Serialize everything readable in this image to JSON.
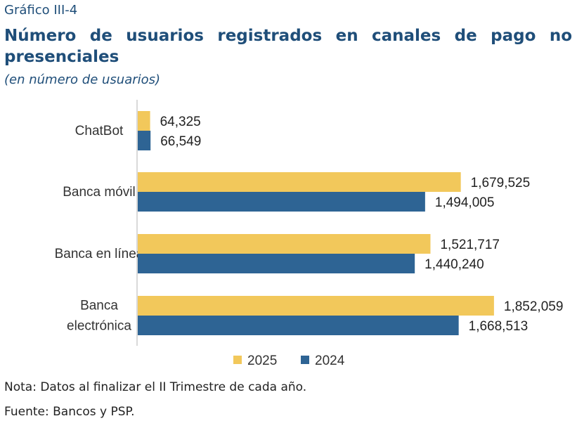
{
  "header": {
    "kicker": "Gráfico III-4",
    "title": "Número de usuarios registrados en canales de pago no presenciales",
    "subtitle": "(en número de usuarios)"
  },
  "footer": {
    "note": "Nota: Datos al finalizar el II Trimestre de cada año.",
    "source": "Fuente: Bancos y PSP."
  },
  "colors": {
    "series_2025": "#f2c85b",
    "series_2024": "#2e6494",
    "axis": "#d9d9d9"
  },
  "chart_data": {
    "type": "bar",
    "orientation": "horizontal",
    "categories": [
      [
        "ChatBot"
      ],
      [
        "Banca móvil"
      ],
      [
        "Banca en línea"
      ],
      [
        "Banca",
        "electrónica"
      ]
    ],
    "series": [
      {
        "name": "2025",
        "values": [
          64325,
          1679525,
          1521717,
          1852059
        ],
        "labels": [
          "64,325",
          "1,679,525",
          "1,521,717",
          "1,852,059"
        ]
      },
      {
        "name": "2024",
        "values": [
          66549,
          1494005,
          1440240,
          1668513
        ],
        "labels": [
          "66,549",
          "1,494,005",
          "1,440,240",
          "1,668,513"
        ]
      }
    ],
    "xlim": [
      0,
      1900000
    ],
    "grid": false,
    "legend_position": "bottom"
  }
}
